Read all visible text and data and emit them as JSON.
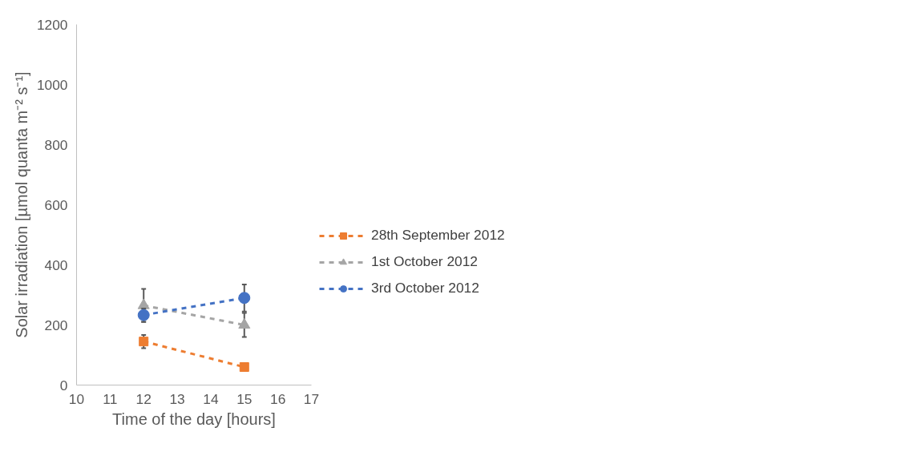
{
  "chart_data": {
    "type": "line",
    "xlabel": "Time of the day [hours]",
    "ylabel": "Solar irradiation [µmol quanta m⁻² s⁻¹]",
    "x": [
      12,
      15
    ],
    "xlim": [
      10,
      17
    ],
    "xticks": [
      10,
      11,
      12,
      13,
      14,
      15,
      16,
      17
    ],
    "ylim": [
      0,
      1200
    ],
    "yticks": [
      0,
      200,
      400,
      600,
      800,
      1000,
      1200
    ],
    "grid": false,
    "legend": "right",
    "line_style": "dashed",
    "series": [
      {
        "name": "28th September 2012",
        "color": "#ed7d31",
        "marker": "square",
        "values": [
          145,
          60
        ],
        "errors": [
          22,
          null
        ]
      },
      {
        "name": "1st October 2012",
        "color": "#a5a5a5",
        "marker": "triangle",
        "values": [
          265,
          200
        ],
        "errors": [
          55,
          40
        ]
      },
      {
        "name": "3rd October 2012",
        "color": "#4472c4",
        "marker": "circle",
        "values": [
          233,
          290
        ],
        "errors": [
          22,
          45
        ]
      }
    ]
  }
}
